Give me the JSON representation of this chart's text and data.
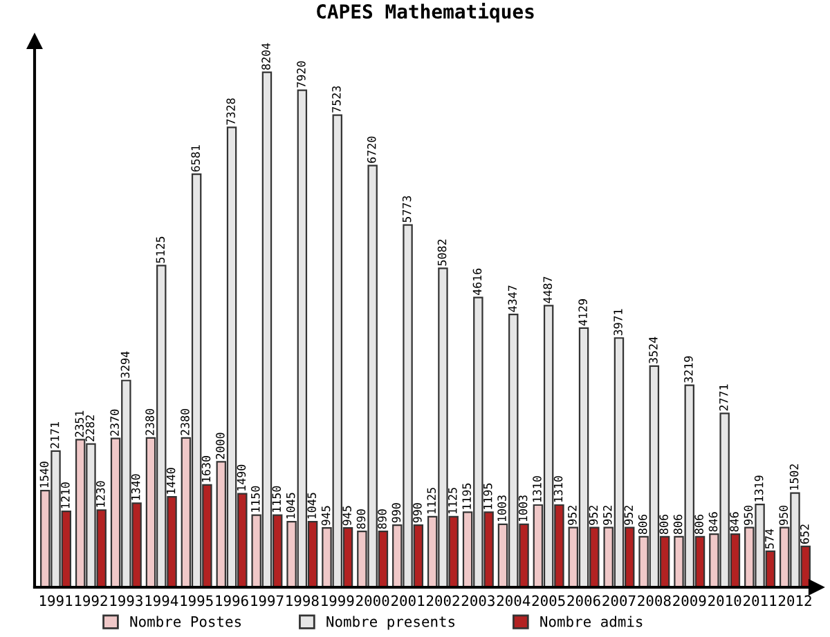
{
  "chart_data": {
    "type": "bar",
    "title": "CAPES Mathematiques",
    "categories": [
      "1991",
      "1992",
      "1993",
      "1994",
      "1995",
      "1996",
      "1997",
      "1998",
      "1999",
      "2000",
      "2001",
      "2002",
      "2003",
      "2004",
      "2005",
      "2006",
      "2007",
      "2008",
      "2009",
      "2010",
      "2011",
      "2012"
    ],
    "series": [
      {
        "name": "Nombre Postes",
        "color": "#f0c8c8",
        "values": [
          1540,
          2351,
          2370,
          2380,
          2380,
          2000,
          1150,
          1045,
          945,
          890,
          990,
          1125,
          1195,
          1003,
          1310,
          952,
          952,
          806,
          806,
          846,
          950,
          950
        ]
      },
      {
        "name": "Nombre presents",
        "color": "#e6e6e6",
        "values": [
          2171,
          2282,
          3294,
          5125,
          6581,
          7328,
          8204,
          7920,
          7523,
          6720,
          5773,
          5082,
          4616,
          4347,
          4487,
          4129,
          3971,
          3524,
          3219,
          2771,
          1319,
          1502
        ]
      },
      {
        "name": "Nombre admis",
        "color": "#b22222",
        "values": [
          1210,
          1230,
          1340,
          1440,
          1630,
          1490,
          1150,
          1045,
          945,
          890,
          990,
          1125,
          1195,
          1003,
          1310,
          952,
          952,
          806,
          806,
          846,
          574,
          652
        ]
      }
    ],
    "data_labels": true,
    "legend": "bottom",
    "grid": false,
    "tick_labels": "x"
  }
}
